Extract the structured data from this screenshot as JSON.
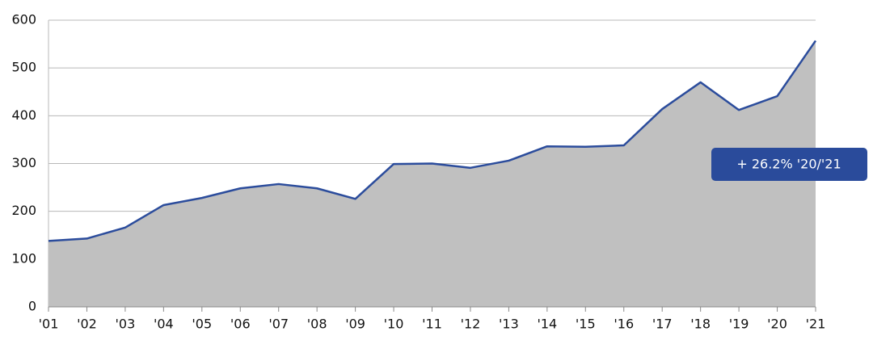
{
  "chart_data": {
    "type": "area",
    "categories": [
      "'01",
      "'02",
      "'03",
      "'04",
      "'05",
      "'06",
      "'07",
      "'08",
      "'09",
      "'10",
      "'11",
      "'12",
      "'13",
      "'14",
      "'15",
      "'16",
      "'17",
      "'18",
      "'19",
      "'20",
      "'21"
    ],
    "series": [
      {
        "values": [
          138,
          143,
          166,
          213,
          228,
          248,
          257,
          248,
          226,
          299,
          300,
          291,
          306,
          336,
          335,
          338,
          414,
          470,
          412,
          441,
          557
        ],
        "color": "#2b4c9c",
        "fill": "#c0c0c0"
      }
    ],
    "ylim": [
      0,
      600
    ],
    "yticks": [
      0,
      100,
      200,
      300,
      400,
      500,
      600
    ],
    "grid": true,
    "annotation": "+ 26.2% '20/'21"
  }
}
